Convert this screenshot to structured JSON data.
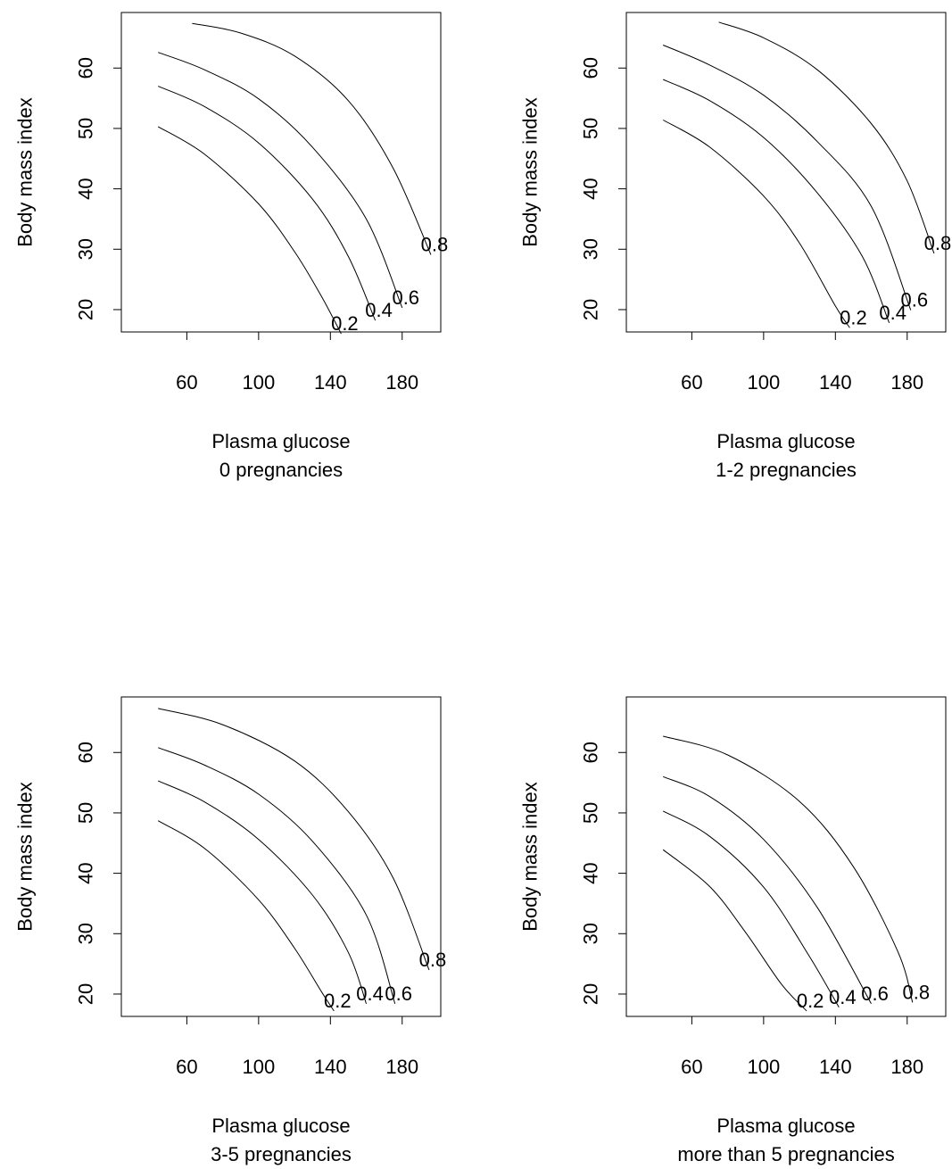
{
  "chart_data": [
    {
      "type": "line",
      "subtype": "contour",
      "xlabel": "Plasma glucose",
      "subtitle": "0 pregnancies",
      "ylabel": "Body mass index",
      "xlim": [
        40,
        200
      ],
      "ylim": [
        16,
        69
      ],
      "xticks": [
        60,
        100,
        140,
        180
      ],
      "yticks": [
        20,
        30,
        40,
        50,
        60
      ],
      "grid": false,
      "contours": [
        {
          "level": "0.2",
          "x": [
            44,
            70,
            100,
            120,
            135,
            146
          ],
          "y": [
            50.3,
            45.7,
            37.5,
            29.6,
            22.2,
            16
          ]
        },
        {
          "level": "0.4",
          "x": [
            44,
            70,
            100,
            130,
            150,
            165
          ],
          "y": [
            57,
            53.6,
            47.6,
            38.3,
            28.8,
            18.2
          ]
        },
        {
          "level": "0.6",
          "x": [
            44,
            70,
            100,
            130,
            160,
            180
          ],
          "y": [
            62.6,
            59.7,
            54.9,
            46.9,
            35,
            20.3
          ]
        },
        {
          "level": "0.8",
          "x": [
            63,
            90,
            120,
            150,
            175,
            196
          ],
          "y": [
            67.4,
            65.8,
            62,
            54.6,
            43.4,
            29.1
          ]
        }
      ]
    },
    {
      "type": "line",
      "subtype": "contour",
      "xlabel": "Plasma glucose",
      "subtitle": "1-2 pregnancies",
      "ylabel": "Body mass index",
      "xlim": [
        40,
        200
      ],
      "ylim": [
        16,
        69
      ],
      "xticks": [
        60,
        100,
        140,
        180
      ],
      "yticks": [
        20,
        30,
        40,
        50,
        60
      ],
      "grid": false,
      "contours": [
        {
          "level": "0.2",
          "x": [
            44,
            70,
            100,
            120,
            140,
            148
          ],
          "y": [
            51.4,
            46.9,
            38.8,
            31,
            20.6,
            17
          ]
        },
        {
          "level": "0.4",
          "x": [
            44,
            70,
            100,
            130,
            155,
            170
          ],
          "y": [
            58.1,
            54.6,
            48.5,
            39.3,
            28.8,
            17.8
          ]
        },
        {
          "level": "0.6",
          "x": [
            44,
            70,
            100,
            130,
            160,
            182
          ],
          "y": [
            63.8,
            60.5,
            55.5,
            47.8,
            37.1,
            19.9
          ]
        },
        {
          "level": "0.8",
          "x": [
            75,
            100,
            130,
            160,
            180,
            195
          ],
          "y": [
            67.6,
            65,
            59.7,
            50.8,
            41.3,
            29.3
          ]
        }
      ]
    },
    {
      "type": "line",
      "subtype": "contour",
      "xlabel": "Plasma glucose",
      "subtitle": "3-5 pregnancies",
      "ylabel": "Body mass index",
      "xlim": [
        40,
        200
      ],
      "ylim": [
        16,
        69
      ],
      "xticks": [
        60,
        100,
        140,
        180
      ],
      "yticks": [
        20,
        30,
        40,
        50,
        60
      ],
      "grid": false,
      "contours": [
        {
          "level": "0.2",
          "x": [
            44,
            70,
            100,
            120,
            135,
            142
          ],
          "y": [
            48.7,
            44.1,
            35.6,
            27.6,
            20.4,
            17.2
          ]
        },
        {
          "level": "0.4",
          "x": [
            44,
            70,
            100,
            130,
            150,
            160
          ],
          "y": [
            55.3,
            51.8,
            45.6,
            36.4,
            26.9,
            18.4
          ]
        },
        {
          "level": "0.6",
          "x": [
            44,
            70,
            100,
            130,
            160,
            176
          ],
          "y": [
            60.8,
            57.9,
            53.1,
            45.3,
            33.1,
            18.4
          ]
        },
        {
          "level": "0.8",
          "x": [
            44,
            80,
            120,
            150,
            175,
            195
          ],
          "y": [
            67.3,
            64.6,
            58.6,
            50.2,
            39.2,
            24
          ]
        }
      ]
    },
    {
      "type": "line",
      "subtype": "contour",
      "xlabel": "Plasma glucose",
      "subtitle": "more than 5 pregnancies",
      "ylabel": "Body mass index",
      "xlim": [
        40,
        200
      ],
      "ylim": [
        16,
        69
      ],
      "xticks": [
        60,
        100,
        140,
        180
      ],
      "yticks": [
        20,
        30,
        40,
        50,
        60
      ],
      "grid": false,
      "contours": [
        {
          "level": "0.2",
          "x": [
            44,
            70,
            90,
            110,
            124
          ],
          "y": [
            43.9,
            37.8,
            30.2,
            21.6,
            17.2
          ]
        },
        {
          "level": "0.4",
          "x": [
            44,
            70,
            100,
            125,
            142
          ],
          "y": [
            50.3,
            46.1,
            37.7,
            26.5,
            17.8
          ]
        },
        {
          "level": "0.6",
          "x": [
            44,
            70,
            100,
            130,
            160
          ],
          "y": [
            56,
            52.7,
            45.6,
            34.3,
            18.4
          ]
        },
        {
          "level": "0.8",
          "x": [
            44,
            80,
            120,
            150,
            175,
            183
          ],
          "y": [
            62.7,
            59.6,
            51.9,
            41.1,
            26.9,
            18.6
          ]
        }
      ]
    }
  ]
}
